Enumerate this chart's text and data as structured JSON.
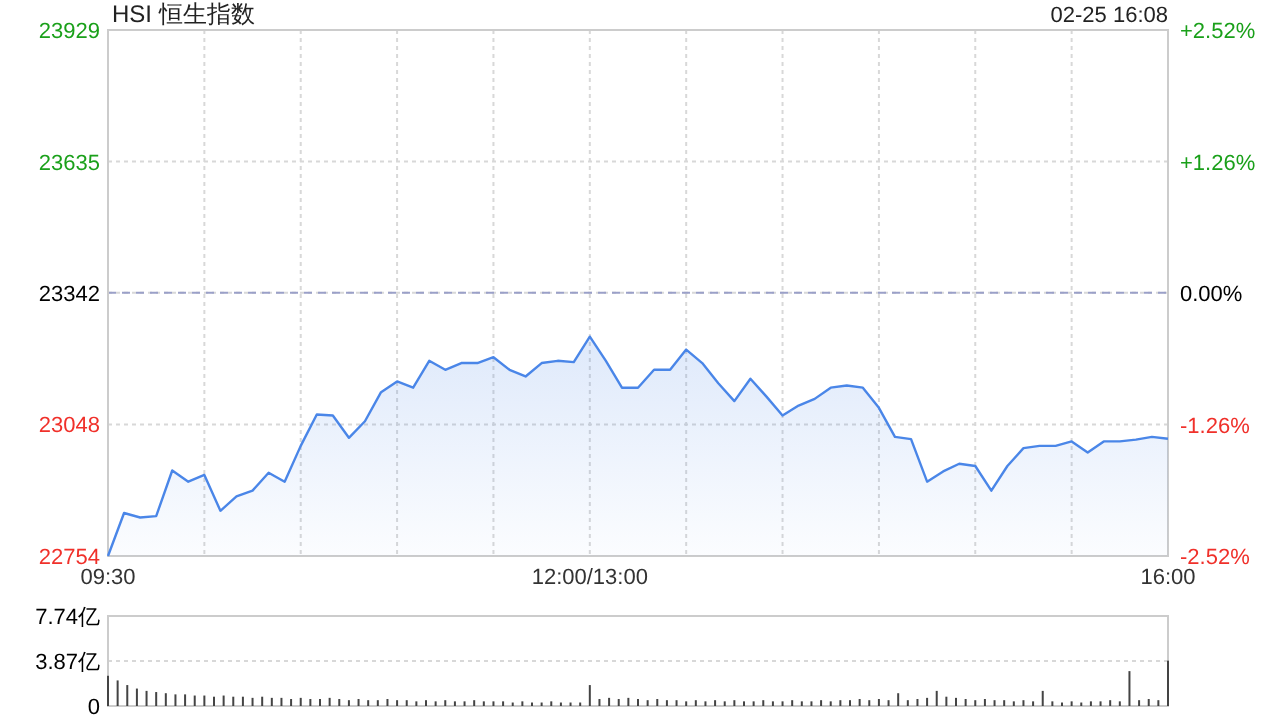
{
  "chart_data": [
    {
      "type": "area",
      "title": "HSI 恒生指数",
      "annotations": [
        "02-25 16:08"
      ],
      "categories": [
        "09:30",
        null,
        null,
        null,
        null,
        null,
        null,
        null,
        null,
        null,
        null,
        null,
        null,
        null,
        null,
        null,
        null,
        null,
        null,
        null,
        null,
        null,
        null,
        null,
        null,
        null,
        null,
        null,
        null,
        null,
        "12:00/13:00",
        null,
        null,
        null,
        null,
        null,
        null,
        null,
        null,
        null,
        null,
        null,
        null,
        null,
        null,
        null,
        null,
        null,
        null,
        null,
        null,
        null,
        null,
        null,
        null,
        null,
        null,
        null,
        null,
        null,
        null,
        null,
        null,
        null,
        null,
        null,
        "16:00"
      ],
      "series": [
        {
          "color": "#4a86e8",
          "values": [
            22754,
            22850,
            22840,
            22843,
            22945,
            22920,
            22935,
            22855,
            22887,
            22900,
            22940,
            22920,
            23000,
            23070,
            23068,
            23018,
            23055,
            23120,
            23144,
            23130,
            23190,
            23170,
            23185,
            23185,
            23198,
            23170,
            23155,
            23185,
            23190,
            23187,
            23244,
            23190,
            23130,
            23130,
            23170,
            23170,
            23215,
            23185,
            23140,
            23100,
            23150,
            23110,
            23068,
            23090,
            23105,
            23130,
            23135,
            23130,
            23085,
            23020,
            23015,
            22920,
            22943,
            22960,
            22955,
            22900,
            22955,
            22995,
            23000,
            23000,
            23010,
            22985,
            23010,
            23010,
            23014,
            23020,
            23016
          ]
        }
      ],
      "ylim": [
        22754,
        23929
      ],
      "yticks": [
        22754,
        23048,
        23342,
        23635,
        23929
      ],
      "y2lim": [
        -2.52,
        2.52
      ],
      "y2ticks": [
        {
          "value": -2.52,
          "label": "-2.52%"
        },
        {
          "value": -1.26,
          "label": "-1.26%"
        },
        {
          "value": 0,
          "label": "0.00%"
        },
        {
          "value": 1.26,
          "label": "+1.26%"
        },
        {
          "value": 2.52,
          "label": "+2.52%"
        }
      ],
      "ref_lines": [
        {
          "axis": "y",
          "value": 23342,
          "color": "#9aa0c8",
          "line_style": "dashed"
        }
      ],
      "grid": true
    },
    {
      "type": "bar",
      "tick_labels": "y",
      "categories": [
        null,
        null,
        null,
        null,
        null,
        null,
        null,
        null,
        null,
        null,
        null,
        null,
        null,
        null,
        null,
        null,
        null,
        null,
        null,
        null,
        null,
        null,
        null,
        null,
        null,
        null,
        null,
        null,
        null,
        null,
        null,
        null,
        null,
        null,
        null,
        null,
        null,
        null,
        null,
        null,
        null,
        null,
        null,
        null,
        null,
        null,
        null,
        null,
        null,
        null,
        null,
        null,
        null,
        null,
        null,
        null,
        null,
        null,
        null,
        null,
        null,
        null,
        null,
        null,
        null,
        null,
        null,
        null,
        null,
        null,
        null,
        null,
        null,
        null,
        null,
        null,
        null,
        null,
        null,
        null,
        null,
        null,
        null,
        null,
        null,
        null,
        null,
        null,
        null,
        null,
        null,
        null,
        null,
        null,
        null,
        null,
        null,
        null,
        null,
        null,
        null,
        null,
        null,
        null,
        null,
        null,
        null,
        null,
        null,
        null,
        null
      ],
      "series": [
        {
          "color": "#444444",
          "values": [
            2.6,
            2.2,
            1.8,
            1.5,
            1.3,
            1.2,
            1.1,
            1.0,
            1.0,
            0.9,
            0.9,
            0.8,
            0.9,
            0.8,
            0.8,
            0.7,
            0.8,
            0.7,
            0.7,
            0.6,
            0.7,
            0.6,
            0.6,
            0.7,
            0.6,
            0.5,
            0.6,
            0.5,
            0.5,
            0.6,
            0.5,
            0.5,
            0.4,
            0.5,
            0.4,
            0.5,
            0.4,
            0.4,
            0.5,
            0.4,
            0.4,
            0.4,
            0.3,
            0.4,
            0.3,
            0.3,
            0.4,
            0.3,
            0.3,
            0.3,
            1.8,
            0.6,
            0.7,
            0.6,
            0.7,
            0.6,
            0.5,
            0.6,
            0.5,
            0.5,
            0.4,
            0.5,
            0.4,
            0.5,
            0.4,
            0.5,
            0.4,
            0.4,
            0.5,
            0.4,
            0.4,
            0.5,
            0.4,
            0.4,
            0.5,
            0.4,
            0.5,
            0.5,
            0.6,
            0.5,
            0.6,
            0.5,
            1.1,
            0.5,
            0.6,
            0.7,
            1.3,
            0.8,
            0.7,
            0.6,
            0.5,
            0.6,
            0.5,
            0.5,
            0.4,
            0.5,
            0.4,
            1.3,
            0.4,
            0.3,
            0.4,
            0.3,
            0.4,
            0.4,
            0.5,
            0.4,
            3.0,
            0.5,
            0.6,
            0.5,
            3.9
          ]
        }
      ],
      "ylim": [
        0,
        7.74
      ],
      "yticks": [
        0,
        {
          "value": 3.87,
          "label": "3.87亿"
        },
        {
          "value": 7.74,
          "label": "7.74亿"
        }
      ],
      "grid": "y"
    }
  ]
}
